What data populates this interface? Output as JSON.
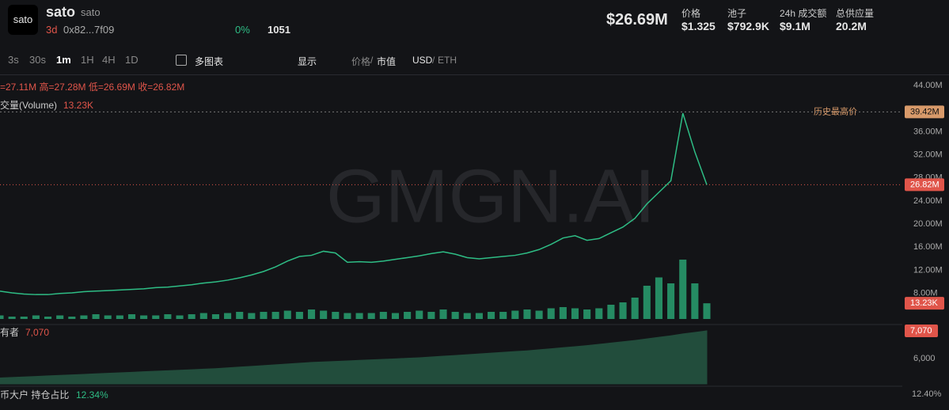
{
  "header": {
    "logo": "sato",
    "name": "sato",
    "symbol": "sato",
    "age": "3d",
    "address": "0x82...7f09",
    "change": "0%",
    "views": "1051",
    "market_cap": "$26.69M",
    "stats": [
      {
        "label": "价格",
        "value": "$1.325"
      },
      {
        "label": "池子",
        "value": "$792.9K"
      },
      {
        "label": "24h 成交额",
        "value": "$9.1M"
      },
      {
        "label": "总供应量",
        "value": "20.2M"
      }
    ]
  },
  "toolbar": {
    "intervals": [
      "3s",
      "30s",
      "1m",
      "1H",
      "4H",
      "1D"
    ],
    "multi_chart": "多图表",
    "display": "显示",
    "price": "价格",
    "market_value": "市值",
    "usd": "USD",
    "eth": "ETH"
  },
  "legend": {
    "ohlc": "=27.11M 高=27.28M 低=26.69M 收=26.82M",
    "volume_name": "交量(Volume)",
    "volume_value": "13.23K",
    "holders_name": "有者",
    "holders_value": "7,070",
    "whale_name": "币大户 持仓占比",
    "whale_value": "12.34%"
  },
  "watermark": "GMGN.AI",
  "chart_data": {
    "type": "line",
    "color": "#2ebd85",
    "values": [
      8.4,
      8.1,
      7.9,
      7.8,
      7.8,
      8.0,
      8.1,
      8.3,
      8.4,
      8.5,
      8.6,
      8.7,
      8.8,
      9.0,
      9.1,
      9.3,
      9.5,
      9.8,
      10.0,
      10.3,
      10.7,
      11.2,
      11.8,
      12.6,
      13.6,
      14.4,
      14.6,
      15.3,
      15.0,
      13.4,
      13.5,
      13.4,
      13.6,
      13.9,
      14.2,
      14.5,
      14.9,
      15.2,
      14.8,
      14.2,
      14.0,
      14.2,
      14.4,
      14.6,
      15.0,
      15.6,
      16.5,
      17.6,
      18.0,
      17.2,
      17.5,
      18.5,
      19.5,
      21.0,
      23.5,
      25.5,
      27.5,
      39.2,
      32.5,
      26.82
    ],
    "ylim": [
      4.4,
      44
    ],
    "yticks": [
      {
        "value": 44,
        "label": "44.00M"
      },
      {
        "value": 36,
        "label": "36.00M"
      },
      {
        "value": 32,
        "label": "32.00M"
      },
      {
        "value": 28,
        "label": "28.00M"
      },
      {
        "value": 24,
        "label": "24.00M"
      },
      {
        "value": 20,
        "label": "20.00M"
      },
      {
        "value": 16,
        "label": "16.00M"
      },
      {
        "value": 12,
        "label": "12.00M"
      },
      {
        "value": 8,
        "label": "8.00M"
      }
    ],
    "ath": {
      "label": "历史最高价",
      "value": 39.42,
      "value_label": "39.42M"
    },
    "last": {
      "value": 26.82,
      "value_label": "26.82M"
    },
    "volume": {
      "color": "#2ebd85",
      "values": [
        3,
        2,
        2,
        3,
        2,
        3,
        2,
        3,
        4,
        3,
        3,
        4,
        3,
        3,
        4,
        3,
        4,
        5,
        4,
        5,
        6,
        5,
        6,
        6,
        7,
        6,
        8,
        7,
        6,
        5,
        5,
        5,
        6,
        5,
        6,
        7,
        6,
        8,
        6,
        5,
        5,
        6,
        6,
        7,
        8,
        7,
        9,
        10,
        9,
        8,
        9,
        12,
        14,
        18,
        28,
        35,
        30,
        50,
        30,
        13.23
      ],
      "last": {
        "value": 13.23,
        "value_label": "13.23K"
      }
    },
    "holders": {
      "color": "#2f7d5b",
      "values": [
        5250,
        5270,
        5290,
        5310,
        5330,
        5350,
        5370,
        5390,
        5410,
        5430,
        5450,
        5470,
        5490,
        5510,
        5530,
        5550,
        5570,
        5590,
        5610,
        5640,
        5670,
        5700,
        5730,
        5760,
        5790,
        5820,
        5850,
        5870,
        5890,
        5910,
        5930,
        5950,
        5970,
        5990,
        6010,
        6030,
        6060,
        6090,
        6120,
        6150,
        6180,
        6210,
        6240,
        6270,
        6300,
        6340,
        6380,
        6420,
        6460,
        6500,
        6550,
        6600,
        6650,
        6700,
        6760,
        6820,
        6880,
        6950,
        7010,
        7070
      ],
      "yticks": [
        {
          "value": 6000,
          "label": "6,000"
        }
      ],
      "last": {
        "value": 7070,
        "label": "7,070"
      }
    },
    "whale_tick": "12.40%"
  }
}
